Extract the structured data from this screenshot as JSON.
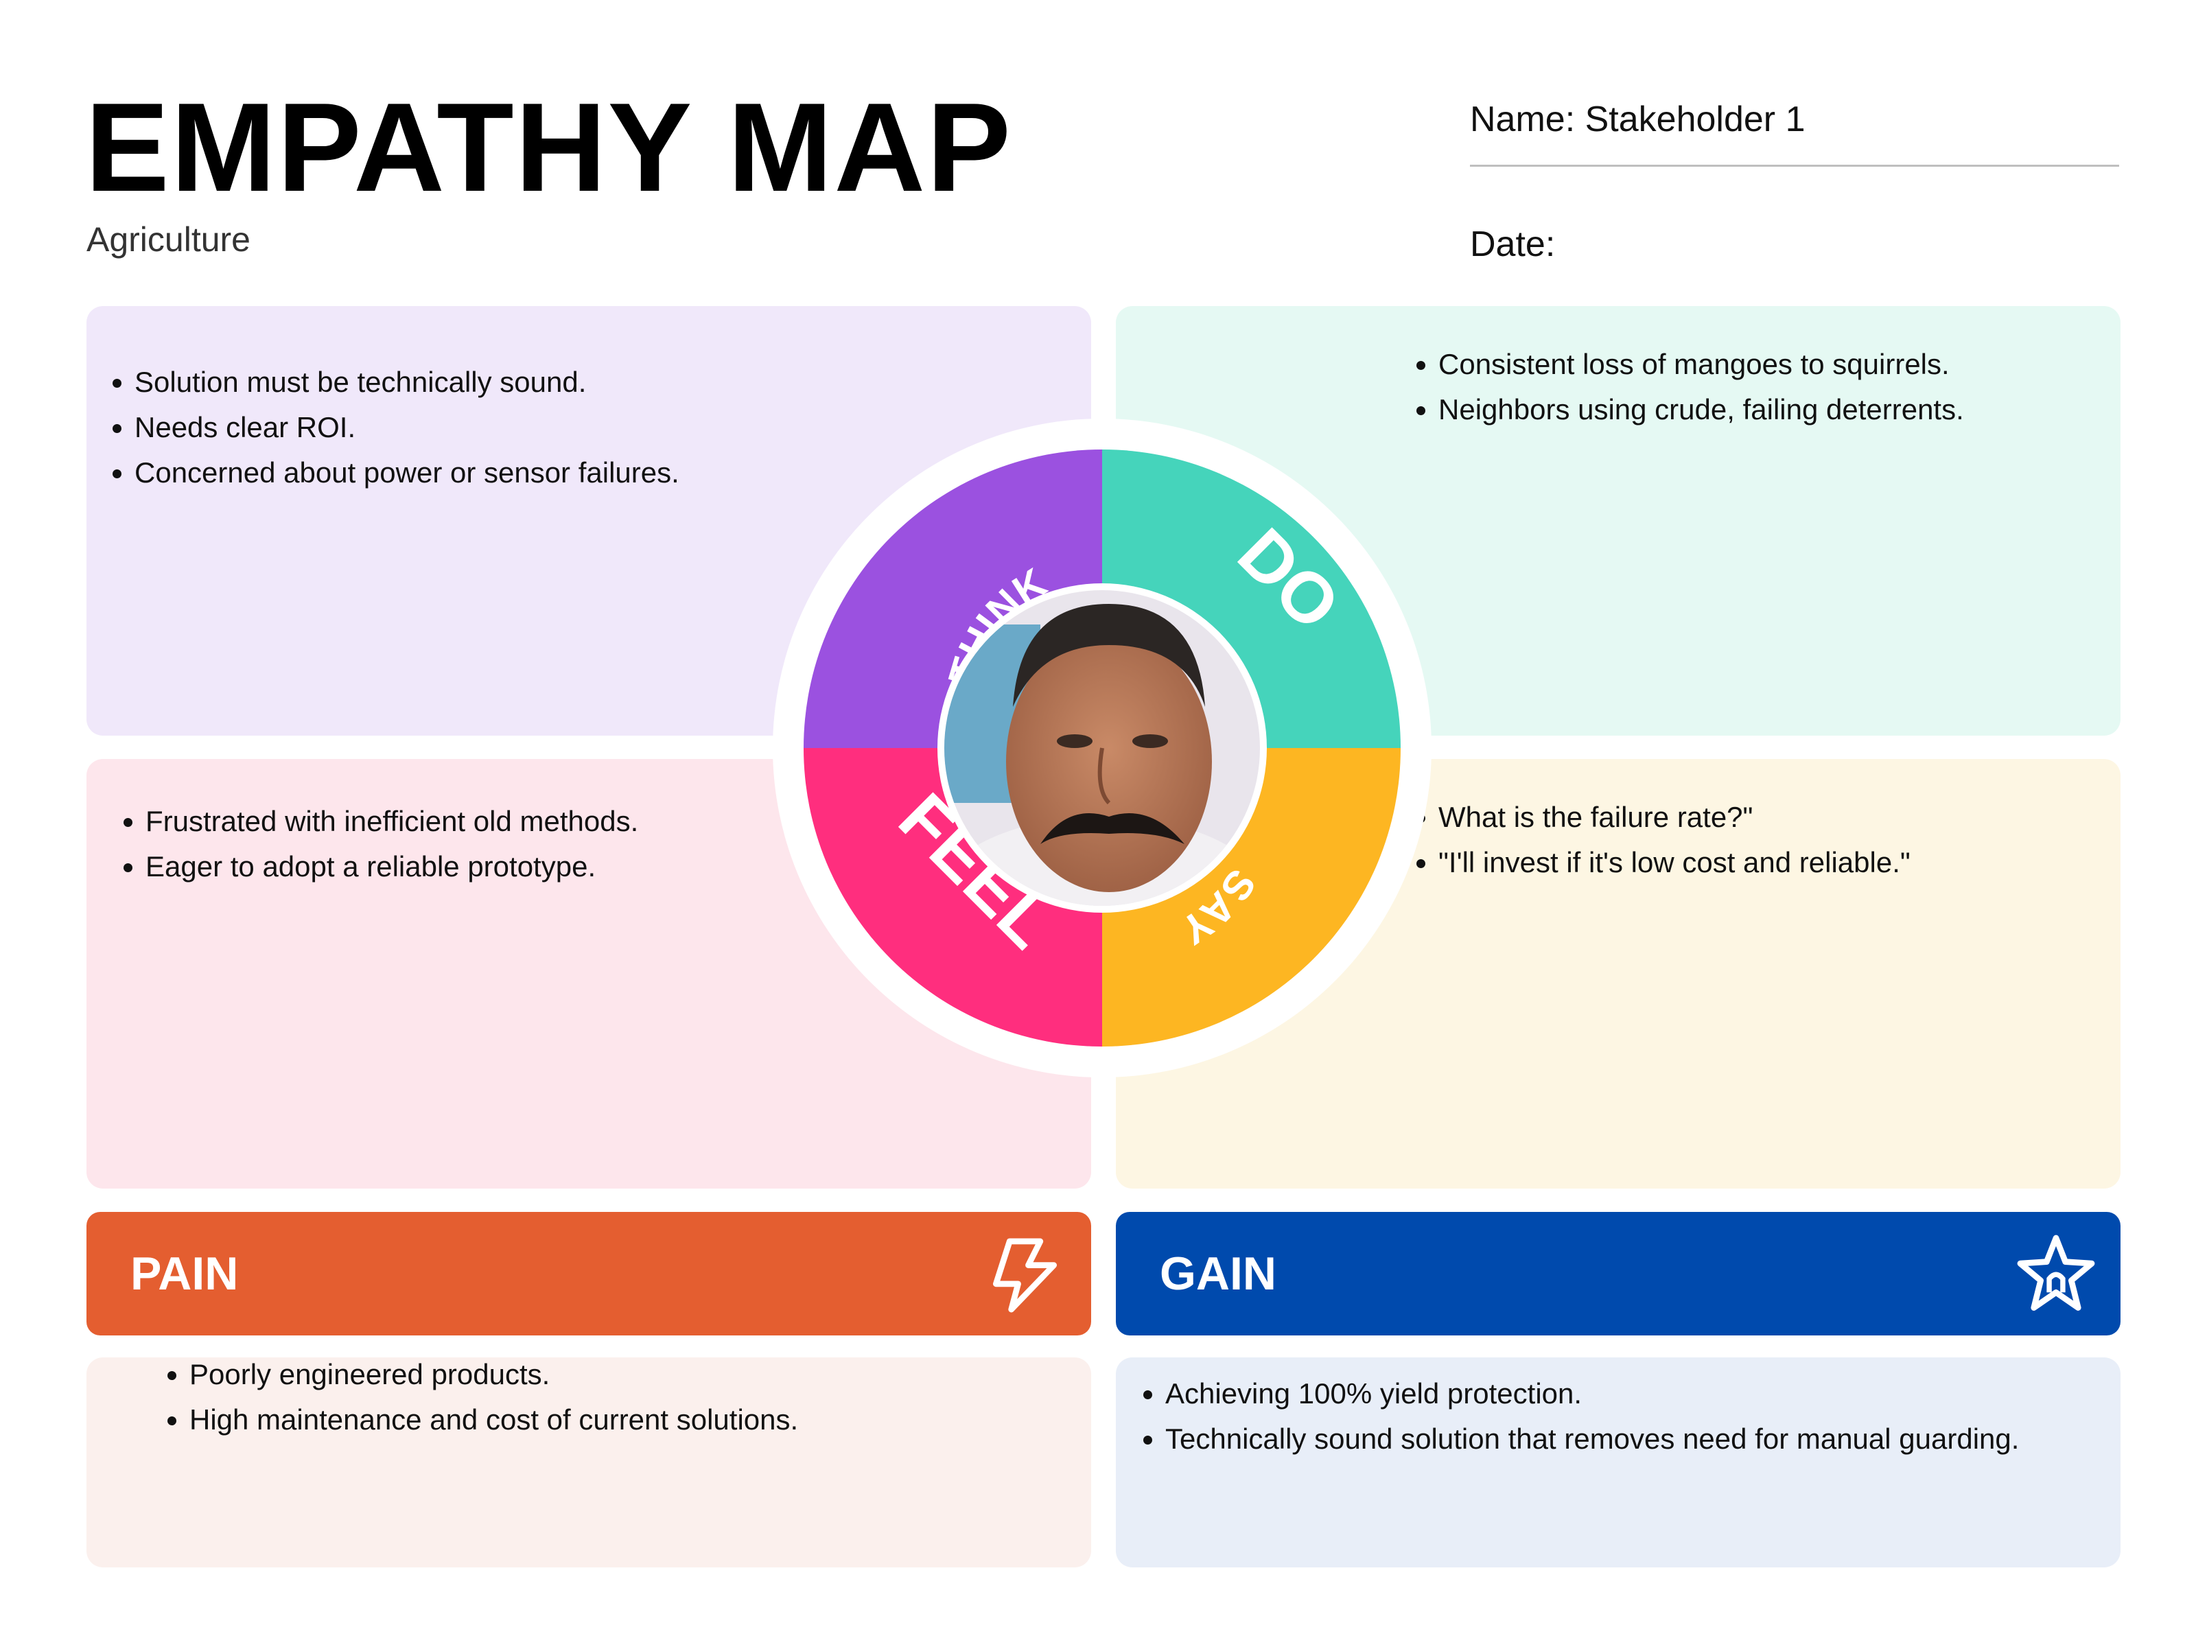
{
  "header": {
    "title": "EMPATHY MAP",
    "subtitle": "Agriculture",
    "name_line": "Name: Stakeholder 1",
    "date_line": "Date:"
  },
  "wheel": {
    "center_image": "stakeholder-portrait-photo",
    "segments": [
      {
        "label": "THINK",
        "color": "#9b51e0"
      },
      {
        "label": "DO",
        "color": "#45d4bb"
      },
      {
        "label": "FEEL",
        "color": "#ff2e7e"
      },
      {
        "label": "SAY",
        "color": "#fdb622"
      }
    ]
  },
  "think": {
    "items": [
      "Solution must be technically sound.",
      "Needs clear ROI.",
      "Concerned about power or sensor failures."
    ]
  },
  "do": {
    "items": [
      "Consistent loss of mangoes to squirrels.",
      "Neighbors using crude, failing deterrents."
    ]
  },
  "feel": {
    "items": [
      "Frustrated with inefficient old methods.",
      "Eager to adopt a reliable prototype."
    ]
  },
  "say": {
    "items": [
      "What is the failure rate?\"",
      "\"I'll invest if it's low cost and reliable.\""
    ]
  },
  "pain": {
    "label": "PAIN",
    "icon": "lightning-bolt-icon",
    "color": "#e45e30",
    "items": [
      "Poorly engineered products.",
      "High maintenance and cost of current solutions."
    ]
  },
  "gain": {
    "label": "GAIN",
    "icon": "star-icon",
    "color": "#004aad",
    "items": [
      "Achieving 100% yield protection.",
      "Technically sound solution that removes need for manual guarding."
    ]
  }
}
